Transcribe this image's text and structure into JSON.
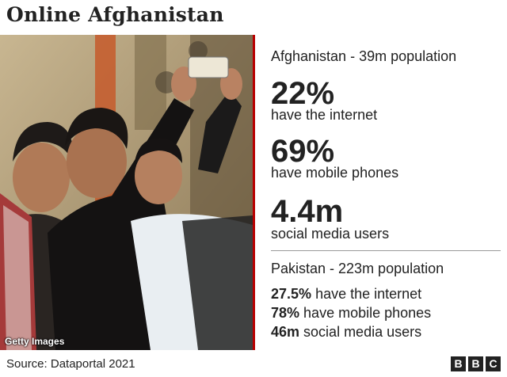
{
  "title": "Online Afghanistan",
  "photo": {
    "credit": "Getty Images"
  },
  "afghanistan": {
    "heading": "Afghanistan - 39m population",
    "stats": [
      {
        "value": "22%",
        "label": "have the internet"
      },
      {
        "value": "69%",
        "label": "have mobile phones"
      },
      {
        "value": "4.4m",
        "label": "social media users"
      }
    ]
  },
  "pakistan": {
    "heading": "Pakistan - 223m population",
    "stats": [
      {
        "value": "27.5%",
        "label": "have the internet"
      },
      {
        "value": "78%",
        "label": "have mobile phones"
      },
      {
        "value": "46m",
        "label": "social media users"
      }
    ]
  },
  "source": "Source: Dataportal 2021",
  "logo": {
    "letters": [
      "B",
      "B",
      "C"
    ]
  },
  "colors": {
    "accent": "#b80000",
    "text": "#222222",
    "rule": "#9a9a9a"
  }
}
